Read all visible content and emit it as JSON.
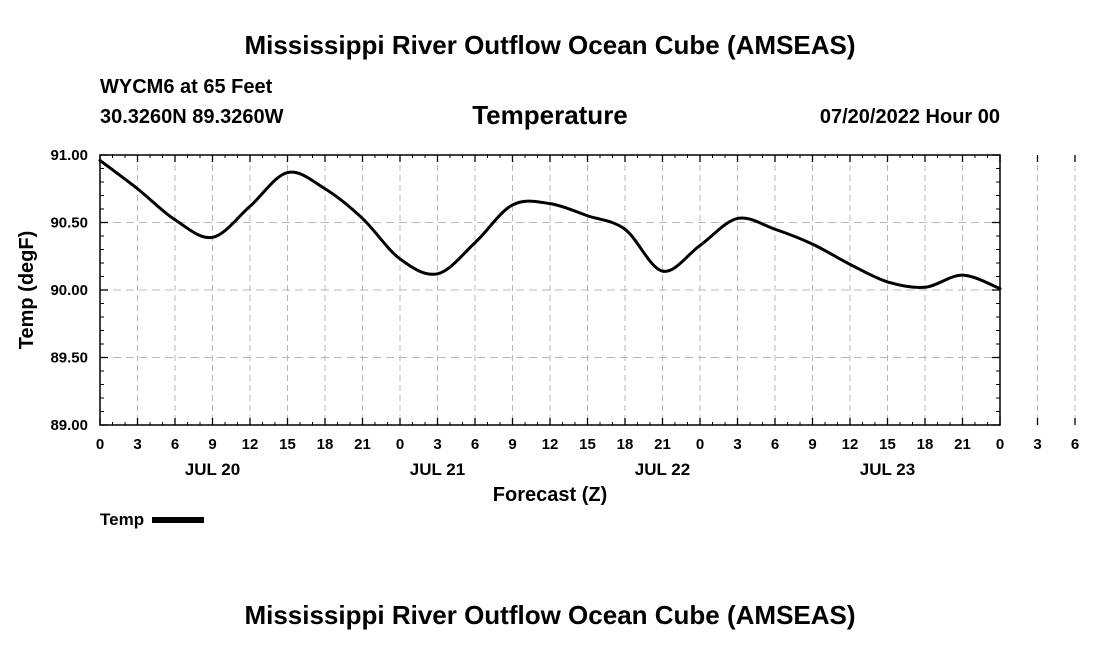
{
  "header": {
    "title": "Mississippi River Outflow Ocean Cube (AMSEAS)",
    "station": "WYCM6 at 65 Feet",
    "location": "30.3260N  89.3260W",
    "date": "07/20/2022 Hour 00"
  },
  "footer": {
    "title": "Mississippi River Outflow Ocean Cube (AMSEAS)"
  },
  "legend": {
    "label": "Temp"
  },
  "chart_data": {
    "type": "line",
    "title": "Temperature",
    "xlabel": "Forecast (Z)",
    "ylabel": "Temp (degF)",
    "xlim": [
      0,
      72
    ],
    "ylim": [
      89.0,
      91.0
    ],
    "yticks": [
      89.0,
      89.5,
      90.0,
      90.5,
      91.0
    ],
    "ytick_labels": [
      "89.00",
      "89.50",
      "90.00",
      "90.50",
      "91.00"
    ],
    "xtick_labels": [
      "0",
      "3",
      "6",
      "9",
      "12",
      "15",
      "18",
      "21",
      "0",
      "3",
      "6",
      "9",
      "12",
      "15",
      "18",
      "21",
      "0",
      "3",
      "6",
      "9",
      "12",
      "15",
      "18",
      "21",
      "0",
      "3",
      "6",
      "9",
      "12",
      "15",
      "18",
      "21",
      "0"
    ],
    "day_labels": [
      {
        "label": "JUL 20",
        "at": 9
      },
      {
        "label": "JUL 21",
        "at": 27
      },
      {
        "label": "JUL 22",
        "at": 45
      },
      {
        "label": "JUL 23",
        "at": 63
      }
    ],
    "grid": true,
    "series": [
      {
        "name": "Temp",
        "color": "#000000",
        "x": [
          0,
          3,
          6,
          9,
          12,
          15,
          18,
          21,
          24,
          27,
          30,
          33,
          36,
          39,
          42,
          45,
          48,
          51,
          54,
          57,
          60,
          63,
          66,
          69,
          72
        ],
        "values": [
          90.96,
          90.75,
          90.52,
          90.39,
          90.62,
          90.87,
          90.75,
          90.53,
          90.23,
          90.12,
          90.35,
          90.63,
          90.64,
          90.55,
          90.45,
          90.14,
          90.33,
          90.53,
          90.45,
          90.34,
          90.19,
          90.06,
          90.02,
          90.11,
          90.01
        ]
      }
    ]
  }
}
